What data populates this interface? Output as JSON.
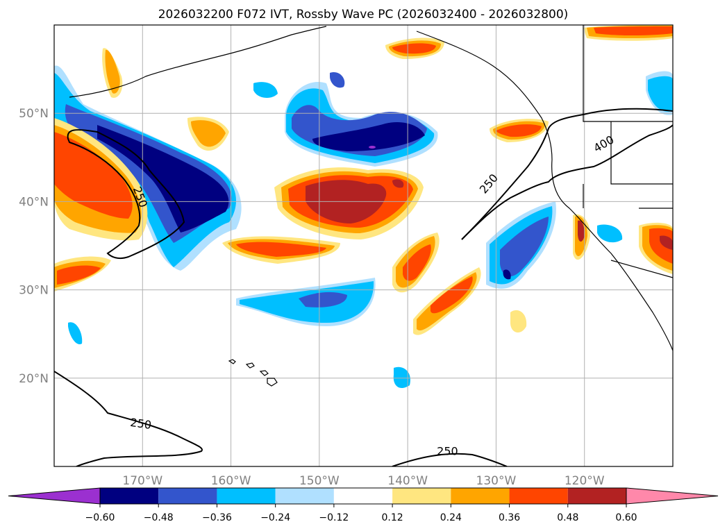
{
  "title": "2026032200 F072 IVT, Rossby Wave PC (2026032400 - 2026032800)",
  "map": {
    "lon_range": [
      -180,
      -110
    ],
    "lat_range": [
      10,
      60
    ],
    "lon_ticks": [
      {
        "value": -170,
        "label": "170°W"
      },
      {
        "value": -160,
        "label": "160°W"
      },
      {
        "value": -150,
        "label": "150°W"
      },
      {
        "value": -140,
        "label": "140°W"
      },
      {
        "value": -130,
        "label": "130°W"
      },
      {
        "value": -120,
        "label": "120°W"
      }
    ],
    "lat_ticks": [
      {
        "value": 50,
        "label": "50°N"
      },
      {
        "value": 40,
        "label": "40°N"
      },
      {
        "value": 30,
        "label": "30°N"
      },
      {
        "value": 20,
        "label": "20°N"
      }
    ],
    "grid": true,
    "contour_labels": [
      {
        "text": "250",
        "lon": -170.3,
        "lat": 40.5,
        "rotate": 70
      },
      {
        "text": "250",
        "lon": -130.8,
        "lat": 42.0,
        "rotate": -50
      },
      {
        "text": "400",
        "lon": -117.8,
        "lat": 46.5,
        "rotate": -30
      },
      {
        "text": "250",
        "lon": -170.2,
        "lat": 14.8,
        "rotate": 8
      },
      {
        "text": "250",
        "lon": -135.5,
        "lat": 11.7,
        "rotate": 0
      }
    ]
  },
  "colorbar": {
    "colors": [
      "#9b30d0",
      "#000080",
      "#3355cc",
      "#00bfff",
      "#b0e0ff",
      "#ffffff",
      "#ffe680",
      "#ffa500",
      "#ff4500",
      "#b22222",
      "#ff88aa"
    ],
    "ticks": [
      "−0.60",
      "−0.48",
      "−0.36",
      "−0.24",
      "−0.12",
      "0.12",
      "0.24",
      "0.36",
      "0.48",
      "0.60"
    ],
    "extend": "both"
  }
}
